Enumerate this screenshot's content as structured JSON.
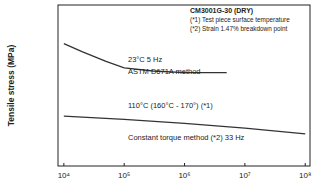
{
  "chart_data": {
    "type": "line",
    "y_label": "Tensile stress (MPa)",
    "annotations": [
      "CM3001G-30 (DRY)",
      "(*1) Test piece surface temperature",
      "(*2) Strain 1.47% breakdown point",
      "23°C 5 Hz",
      "ASTM D671A method",
      "110°C (160°C - 170°) (*1)",
      "Constant torque method (*2) 33 Hz"
    ],
    "log": "x",
    "xlim": [
      8000,
      120000000
    ],
    "xticks": [
      {
        "value": 10000,
        "label": "10⁴"
      },
      {
        "value": 100000,
        "label": "10⁵"
      },
      {
        "value": 1000000,
        "label": "10⁶"
      },
      {
        "value": 10000000,
        "label": "10⁷"
      },
      {
        "value": 100000000,
        "label": "10⁸"
      }
    ],
    "ylim": [
      0,
      100
    ],
    "yticks": [],
    "tick_labels": "x",
    "series": [
      {
        "name": "23°C 5 Hz",
        "color": "#333333",
        "x": [
          10000,
          20000,
          50000,
          100000,
          300000,
          1000000,
          5000000
        ],
        "values": [
          76,
          71,
          65,
          61,
          59,
          58,
          58
        ]
      },
      {
        "name": "110°C",
        "color": "#333333",
        "x": [
          10000,
          100000,
          1000000,
          10000000,
          100000000
        ],
        "values": [
          31,
          29,
          26.5,
          23.5,
          20
        ]
      }
    ]
  }
}
